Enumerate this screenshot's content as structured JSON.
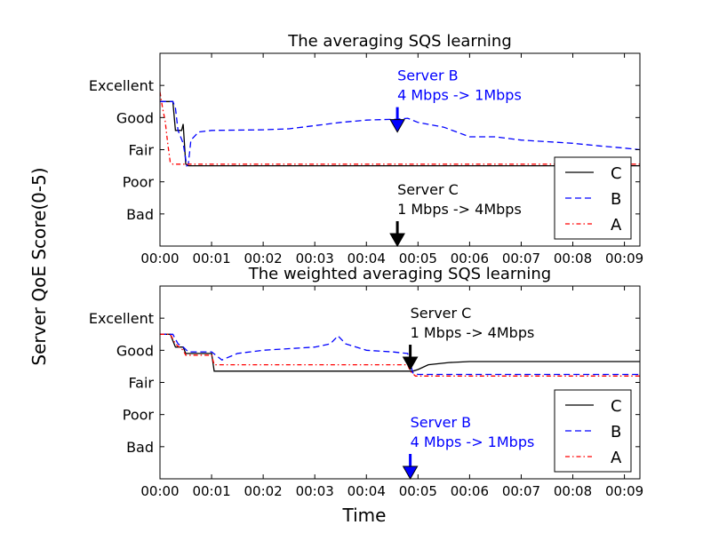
{
  "figure": {
    "ylabel": "Server QoE Score(0-5)",
    "xlabel": "Time"
  },
  "chart_data": [
    {
      "type": "line",
      "title": "The averaging SQS learning",
      "xlim": [
        0,
        9.3
      ],
      "ylim": [
        0,
        6
      ],
      "x_ticks": [
        "00:00",
        "00:01",
        "00:02",
        "00:03",
        "00:04",
        "00:05",
        "00:06",
        "00:07",
        "00:08",
        "00:09"
      ],
      "y_ticks": [
        {
          "value": 1,
          "label": "Bad"
        },
        {
          "value": 2,
          "label": "Poor"
        },
        {
          "value": 3,
          "label": "Fair"
        },
        {
          "value": 4,
          "label": "Good"
        },
        {
          "value": 5,
          "label": "Excellent"
        }
      ],
      "legend": {
        "position": "lower-right",
        "entries": [
          {
            "label": "C",
            "color": "#000000",
            "dash": "solid"
          },
          {
            "label": "B",
            "color": "#0000ff",
            "dash": "dashed"
          },
          {
            "label": "A",
            "color": "#ff0000",
            "dash": "dashdot"
          }
        ]
      },
      "series": [
        {
          "name": "C",
          "color": "#000000",
          "dash": "solid",
          "x": [
            0,
            0.25,
            0.3,
            0.42,
            0.45,
            0.5,
            0.55,
            9.3
          ],
          "y": [
            4.5,
            4.5,
            3.6,
            3.6,
            3.8,
            2.55,
            2.5,
            2.5
          ]
        },
        {
          "name": "B",
          "color": "#0000ff",
          "dash": "dashed",
          "x": [
            0,
            0.25,
            0.3,
            0.35,
            0.45,
            0.52,
            0.55,
            0.6,
            0.75,
            1.0,
            2.0,
            2.5,
            3.0,
            3.5,
            4.0,
            4.6,
            4.8,
            5.0,
            5.5,
            6.0,
            6.5,
            7.0,
            7.5,
            8.0,
            8.5,
            9.0,
            9.3
          ],
          "y": [
            4.5,
            4.5,
            4.3,
            3.6,
            3.2,
            2.5,
            2.55,
            3.3,
            3.55,
            3.6,
            3.62,
            3.65,
            3.75,
            3.85,
            3.92,
            3.95,
            3.98,
            3.85,
            3.7,
            3.4,
            3.4,
            3.3,
            3.25,
            3.2,
            3.12,
            3.05,
            3.0
          ]
        },
        {
          "name": "A",
          "color": "#ff0000",
          "dash": "dashdot",
          "x": [
            0,
            0.05,
            0.1,
            0.15,
            0.2,
            0.25,
            0.4,
            9.3
          ],
          "y": [
            4.8,
            4.3,
            3.9,
            3.2,
            2.6,
            2.55,
            2.55,
            2.55
          ]
        }
      ],
      "annotations": [
        {
          "text": [
            "Server B",
            "4 Mbps -> 1Mbps"
          ],
          "color": "#0000ff",
          "arrow_x": 4.6,
          "arrow_y": 3.55,
          "arrow_color": "#0000ff"
        },
        {
          "text": [
            "Server C",
            "1 Mbps -> 4Mbps"
          ],
          "color": "#000000",
          "arrow_x": 4.6,
          "arrow_y": 0.0,
          "arrow_color": "#000000"
        }
      ]
    },
    {
      "type": "line",
      "title": "The weighted averaging SQS learning",
      "xlim": [
        0,
        9.3
      ],
      "ylim": [
        0,
        6
      ],
      "x_ticks": [
        "00:00",
        "00:01",
        "00:02",
        "00:03",
        "00:04",
        "00:05",
        "00:06",
        "00:07",
        "00:08",
        "00:09"
      ],
      "y_ticks": [
        {
          "value": 1,
          "label": "Bad"
        },
        {
          "value": 2,
          "label": "Poor"
        },
        {
          "value": 3,
          "label": "Fair"
        },
        {
          "value": 4,
          "label": "Good"
        },
        {
          "value": 5,
          "label": "Excellent"
        }
      ],
      "legend": {
        "position": "lower-right",
        "entries": [
          {
            "label": "C",
            "color": "#000000",
            "dash": "solid"
          },
          {
            "label": "B",
            "color": "#0000ff",
            "dash": "dashed"
          },
          {
            "label": "A",
            "color": "#ff0000",
            "dash": "dashdot"
          }
        ]
      },
      "series": [
        {
          "name": "C",
          "color": "#000000",
          "dash": "solid",
          "x": [
            0,
            0.2,
            0.3,
            0.45,
            0.5,
            1.0,
            1.05,
            4.85,
            4.9,
            5.0,
            5.2,
            5.6,
            6.0,
            9.3
          ],
          "y": [
            4.5,
            4.5,
            4.1,
            4.1,
            3.9,
            3.9,
            3.35,
            3.35,
            3.35,
            3.4,
            3.55,
            3.62,
            3.65,
            3.65
          ]
        },
        {
          "name": "B",
          "color": "#0000ff",
          "dash": "dashed",
          "x": [
            0,
            0.25,
            0.35,
            0.45,
            0.55,
            1.0,
            1.2,
            1.5,
            2.0,
            2.5,
            3.0,
            3.3,
            3.45,
            3.6,
            4.0,
            4.5,
            4.8,
            4.9,
            5.0,
            9.3
          ],
          "y": [
            4.5,
            4.5,
            4.2,
            4.1,
            3.95,
            3.95,
            3.7,
            3.9,
            4.0,
            4.05,
            4.1,
            4.2,
            4.45,
            4.2,
            4.0,
            3.95,
            3.9,
            3.3,
            3.25,
            3.25
          ]
        },
        {
          "name": "A",
          "color": "#ff0000",
          "dash": "dashdot",
          "x": [
            0,
            0.2,
            0.3,
            0.45,
            0.5,
            1.0,
            1.05,
            4.8,
            4.85,
            4.95,
            9.3
          ],
          "y": [
            4.5,
            4.5,
            4.2,
            4.0,
            3.85,
            3.85,
            3.55,
            3.55,
            3.35,
            3.2,
            3.2
          ]
        }
      ],
      "annotations": [
        {
          "text": [
            "Server C",
            "1 Mbps -> 4Mbps"
          ],
          "color": "#000000",
          "arrow_x": 4.85,
          "arrow_y": 3.4,
          "arrow_color": "#000000"
        },
        {
          "text": [
            "Server B",
            "4 Mbps -> 1Mbps"
          ],
          "color": "#0000ff",
          "arrow_x": 4.85,
          "arrow_y": 0.0,
          "arrow_color": "#0000ff"
        }
      ]
    }
  ]
}
